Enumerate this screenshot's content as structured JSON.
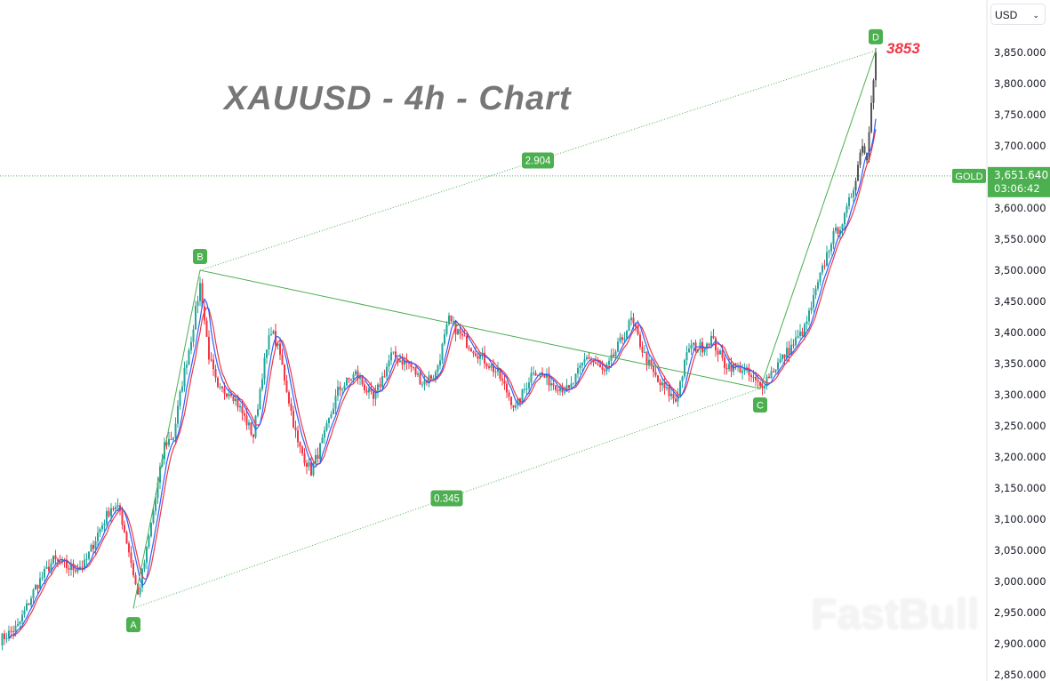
{
  "chart_data": {
    "type": "candlestick",
    "title": "XAUUSD - 4h - Chart",
    "symbol_label": "GOLD",
    "currency": "USD",
    "ylim": [
      2850,
      3850
    ],
    "y_ticks": [
      2850,
      2900,
      2950,
      3000,
      3050,
      3100,
      3150,
      3200,
      3250,
      3300,
      3350,
      3400,
      3450,
      3500,
      3550,
      3600,
      3650,
      3700,
      3750,
      3800,
      3850
    ],
    "y_tick_labels": [
      "2,850.000",
      "2,900.000",
      "2,950.000",
      "3,000.000",
      "3,050.000",
      "3,100.000",
      "3,150.000",
      "3,200.000",
      "3,250.000",
      "3,300.000",
      "3,350.000",
      "3,400.000",
      "3,450.000",
      "3,500.000",
      "3,550.000",
      "3,600.000",
      "3,650.000",
      "3,700.000",
      "3,750.000",
      "3,800.000",
      "3,850.000"
    ],
    "current_price": 3651.64,
    "current_price_label": "3,651.640",
    "countdown": "03:06:42",
    "price_path": [
      [
        0,
        2906
      ],
      [
        4,
        2927
      ],
      [
        8,
        2991
      ],
      [
        12,
        3034
      ],
      [
        16,
        3020
      ],
      [
        19,
        3027
      ],
      [
        22,
        3077
      ],
      [
        25,
        3120
      ],
      [
        27,
        3113
      ],
      [
        29,
        3049
      ],
      [
        31,
        2977
      ],
      [
        33,
        3049
      ],
      [
        35,
        3134
      ],
      [
        37,
        3220
      ],
      [
        39,
        3234
      ],
      [
        41,
        3320
      ],
      [
        43,
        3391
      ],
      [
        45,
        3477
      ],
      [
        47,
        3363
      ],
      [
        49,
        3306
      ],
      [
        52,
        3306
      ],
      [
        55,
        3263
      ],
      [
        57,
        3234
      ],
      [
        59,
        3334
      ],
      [
        61,
        3406
      ],
      [
        63,
        3363
      ],
      [
        65,
        3291
      ],
      [
        67,
        3220
      ],
      [
        70,
        3177
      ],
      [
        73,
        3234
      ],
      [
        76,
        3306
      ],
      [
        80,
        3334
      ],
      [
        84,
        3291
      ],
      [
        88,
        3363
      ],
      [
        92,
        3349
      ],
      [
        95,
        3320
      ],
      [
        98,
        3334
      ],
      [
        101,
        3420
      ],
      [
        104,
        3391
      ],
      [
        108,
        3363
      ],
      [
        112,
        3334
      ],
      [
        116,
        3277
      ],
      [
        120,
        3341
      ],
      [
        124,
        3320
      ],
      [
        128,
        3306
      ],
      [
        132,
        3363
      ],
      [
        136,
        3334
      ],
      [
        140,
        3391
      ],
      [
        142,
        3420
      ],
      [
        145,
        3363
      ],
      [
        148,
        3320
      ],
      [
        152,
        3291
      ],
      [
        155,
        3377
      ],
      [
        158,
        3377
      ],
      [
        160,
        3391
      ],
      [
        163,
        3349
      ],
      [
        167,
        3341
      ],
      [
        171,
        3313
      ],
      [
        174,
        3341
      ],
      [
        178,
        3377
      ],
      [
        181,
        3406
      ],
      [
        184,
        3477
      ],
      [
        187,
        3549
      ],
      [
        190,
        3584
      ],
      [
        192,
        3634
      ],
      [
        194,
        3706
      ],
      [
        195,
        3677
      ],
      [
        196,
        3777
      ],
      [
        197,
        3850
      ]
    ],
    "pattern_points": [
      {
        "label": "A",
        "bar": 30,
        "price": 2957
      },
      {
        "label": "B",
        "bar": 45,
        "price": 3500
      },
      {
        "label": "C",
        "bar": 171,
        "price": 3310
      },
      {
        "label": "D",
        "bar": 197,
        "price": 3853
      }
    ],
    "ratios": [
      {
        "label": "2.904",
        "from": "B",
        "to": "D"
      },
      {
        "label": "0.345",
        "from": "A",
        "to": "C"
      }
    ],
    "target_label": "3853",
    "colors": {
      "up": "#26a69a",
      "down": "#f23645",
      "pattern": "#4caf50",
      "ma_red": "#f23645",
      "ma_blue": "#2962ff",
      "target": "#f23645"
    }
  },
  "watermark": "FastBull"
}
